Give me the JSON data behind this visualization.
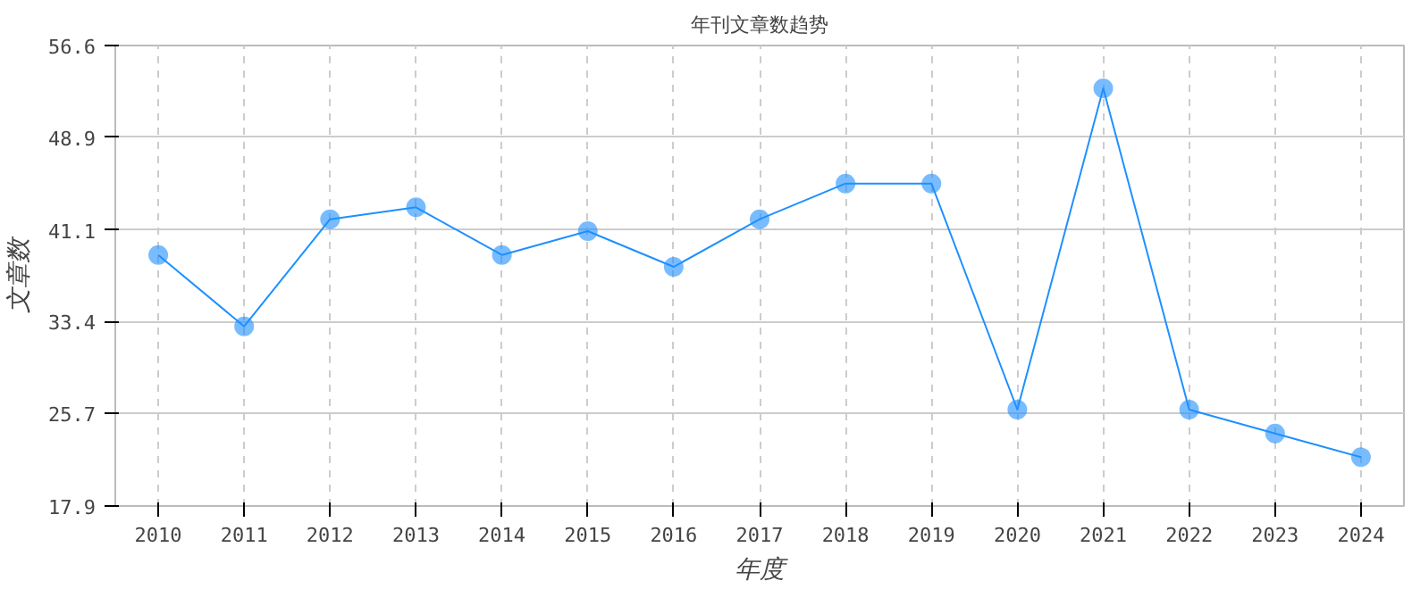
{
  "chart_data": {
    "type": "line",
    "title": "年刊文章数趋势",
    "xlabel": "年度",
    "ylabel": "文章数",
    "categories": [
      "2010",
      "2011",
      "2012",
      "2013",
      "2014",
      "2015",
      "2016",
      "2017",
      "2018",
      "2019",
      "2020",
      "2021",
      "2022",
      "2023",
      "2024"
    ],
    "series": [
      {
        "color": "#1e90ff",
        "values": [
          39,
          33,
          42,
          43,
          39,
          41,
          38,
          42,
          45,
          45,
          26,
          53,
          26,
          24,
          22
        ]
      }
    ],
    "ylim": [
      17.9,
      56.6
    ],
    "yticks": [
      17.9,
      25.7,
      33.4,
      41.1,
      48.9,
      56.6
    ],
    "grid": true,
    "marker": "circle",
    "line_style": "solid"
  }
}
